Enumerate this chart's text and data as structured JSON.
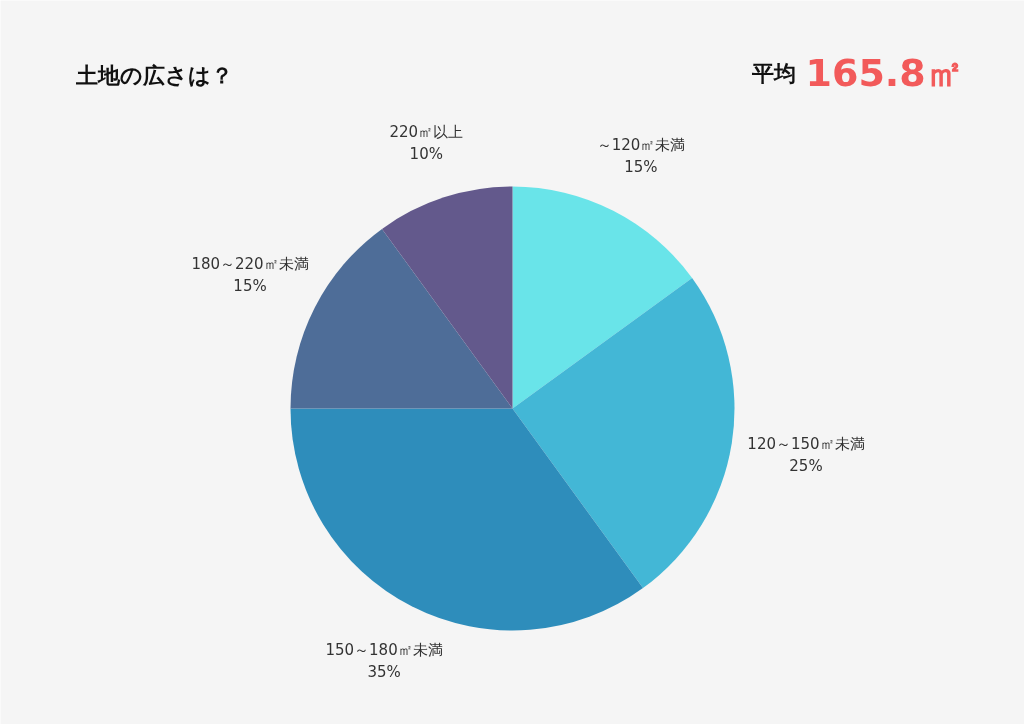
{
  "chart_data": {
    "type": "pie",
    "title": "土地の広さは？",
    "annotations": [
      "平均",
      "165.8㎡"
    ],
    "categories": [
      "～120㎡未満",
      "120～150㎡未満",
      "150～180㎡未満",
      "180～220㎡未満",
      "220㎡以上"
    ],
    "values": [
      15,
      25,
      35,
      15,
      10
    ],
    "value_labels": [
      "15%",
      "25%",
      "35%",
      "15%",
      "10%"
    ],
    "colors": [
      "#69e4e9",
      "#43b7d6",
      "#2e8dbb",
      "#4e6d98",
      "#63598c"
    ]
  }
}
